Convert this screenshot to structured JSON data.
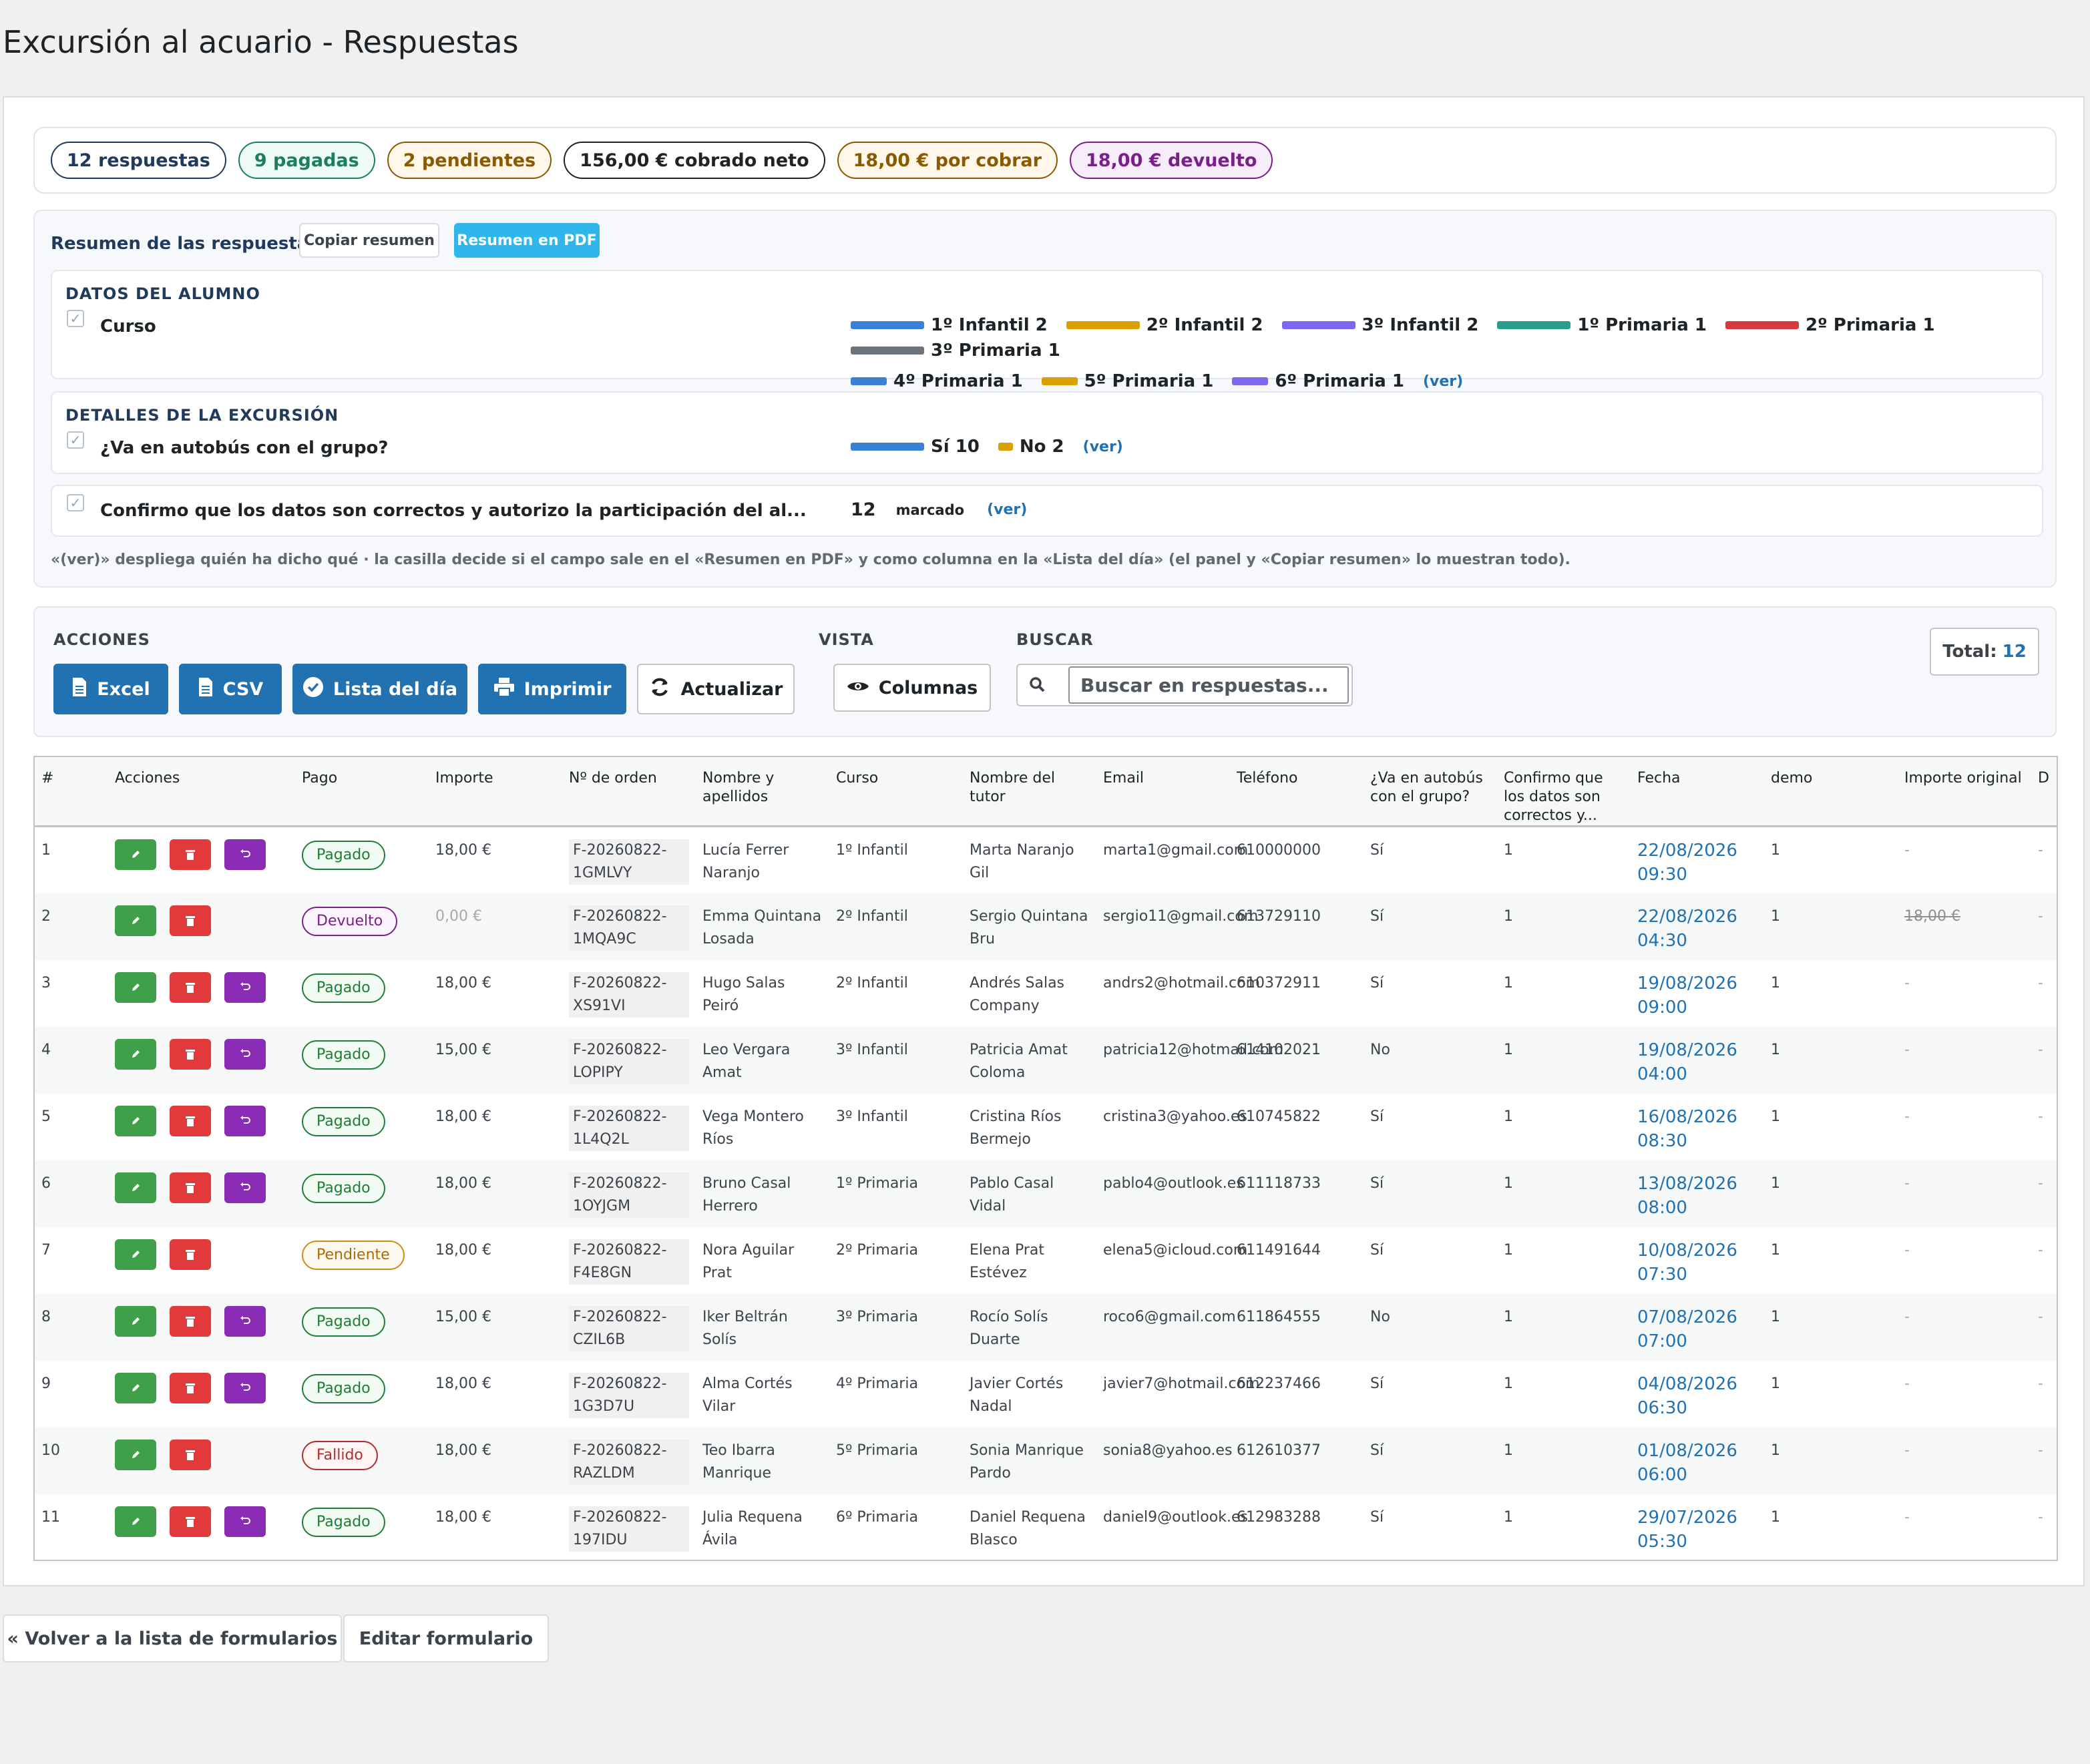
{
  "page": {
    "title": "Excursión al acuario - Respuestas"
  },
  "stats": {
    "items": [
      {
        "label": "12 respuestas",
        "color": "#1f3a5a",
        "bg": "#ffffff"
      },
      {
        "label": "9 pagadas",
        "color": "#1a7f5a",
        "bg": "#eefaf5"
      },
      {
        "label": "2 pendientes",
        "color": "#8a5a00",
        "bg": "#fff8ea"
      },
      {
        "label": "156,00 € cobrado neto",
        "color": "#1d2327",
        "bg": "#ffffff"
      },
      {
        "label": "18,00 € por cobrar",
        "color": "#8a5a00",
        "bg": "#fff8ea"
      },
      {
        "label": "18,00 € devuelto",
        "color": "#7a1f8a",
        "bg": "#f6ecfa"
      }
    ]
  },
  "summary": {
    "title": "Resumen de las respuestas",
    "copy_label": "Copiar resumen",
    "pdf_label": "Resumen en PDF",
    "sections": {
      "student": {
        "title": "DATOS DEL ALUMNO",
        "field": "Curso",
        "legend": [
          {
            "label": "1º Infantil 2",
            "color": "#3b7fd6"
          },
          {
            "label": "2º Infantil 2",
            "color": "#d9a100"
          },
          {
            "label": "3º Infantil 2",
            "color": "#7b68ee"
          },
          {
            "label": "1º Primaria 1",
            "color": "#2a9d8f"
          },
          {
            "label": "2º Primaria 1",
            "color": "#d63a3a"
          },
          {
            "label": "3º Primaria 1",
            "color": "#6b737d"
          },
          {
            "label": "4º Primaria 1",
            "color": "#3b7fd6"
          },
          {
            "label": "5º Primaria 1",
            "color": "#d9a100"
          },
          {
            "label": "6º Primaria 1",
            "color": "#7b68ee"
          }
        ],
        "ver": "(ver)"
      },
      "trip": {
        "title": "DETALLES DE LA EXCURSIÓN",
        "field": "¿Va en autobús con el grupo?",
        "legend": [
          {
            "label": "Sí 10",
            "color": "#3b7fd6"
          },
          {
            "label": "No 2",
            "color": "#d9a100"
          }
        ],
        "ver": "(ver)"
      },
      "confirm": {
        "field": "Confirmo que los datos son correctos y autorizo la participación del al...",
        "count": "12",
        "count_label": "marcado",
        "ver": "(ver)"
      }
    },
    "note": "«(ver)» despliega quién ha dicho qué · la casilla decide si el campo sale en el «Resumen en PDF» y como columna en la «Lista del día» (el panel y «Copiar resumen» lo muestran todo)."
  },
  "toolbar": {
    "acciones_label": "ACCIONES",
    "vista_label": "VISTA",
    "buscar_label": "BUSCAR",
    "excel": "Excel",
    "csv": "CSV",
    "lista": "Lista del día",
    "imprimir": "Imprimir",
    "actualizar": "Actualizar",
    "columnas": "Columnas",
    "search_placeholder": "Buscar en respuestas...",
    "total_label": "Total:",
    "total_value": "12"
  },
  "table": {
    "headers": [
      "#",
      "Acciones",
      "Pago",
      "Importe",
      "Nº de orden",
      "Nombre y apellidos",
      "Curso",
      "Nombre del tutor",
      "Email",
      "Teléfono",
      "¿Va en autobús con el grupo?",
      "Confirmo que los datos son correctos y...",
      "Fecha",
      "demo",
      "Importe original",
      "D"
    ],
    "rows": [
      {
        "n": "1",
        "undo": true,
        "pago": "Pagado",
        "importe": "18,00 €",
        "orden": "F-20260822-1GMLVY",
        "nombre": "Lucía Ferrer Naranjo",
        "curso": "1º Infantil",
        "tutor": "Marta Naranjo Gil",
        "email": "marta1@gmail.com",
        "tel": "610000000",
        "bus": "Sí",
        "conf": "1",
        "fecha": "22/08/2026 09:30",
        "demo": "1",
        "orig": "-",
        "d": "-"
      },
      {
        "n": "2",
        "undo": false,
        "pago": "Devuelto",
        "importe": "0,00 €",
        "orden": "F-20260822-1MQA9C",
        "nombre": "Emma Quintana Losada",
        "curso": "2º Infantil",
        "tutor": "Sergio Quintana Bru",
        "email": "sergio11@gmail.com",
        "tel": "613729110",
        "bus": "Sí",
        "conf": "1",
        "fecha": "22/08/2026 04:30",
        "demo": "1",
        "orig": "18,00 €",
        "d": "-"
      },
      {
        "n": "3",
        "undo": true,
        "pago": "Pagado",
        "importe": "18,00 €",
        "orden": "F-20260822-XS91VI",
        "nombre": "Hugo Salas Peiró",
        "curso": "2º Infantil",
        "tutor": "Andrés Salas Company",
        "email": "andrs2@hotmail.com",
        "tel": "610372911",
        "bus": "Sí",
        "conf": "1",
        "fecha": "19/08/2026 09:00",
        "demo": "1",
        "orig": "-",
        "d": "-"
      },
      {
        "n": "4",
        "undo": true,
        "pago": "Pagado",
        "importe": "15,00 €",
        "orden": "F-20260822-LOPIPY",
        "nombre": "Leo Vergara Amat",
        "curso": "3º Infantil",
        "tutor": "Patricia Amat Coloma",
        "email": "patricia12@hotmail.com",
        "tel": "614102021",
        "bus": "No",
        "conf": "1",
        "fecha": "19/08/2026 04:00",
        "demo": "1",
        "orig": "-",
        "d": "-"
      },
      {
        "n": "5",
        "undo": true,
        "pago": "Pagado",
        "importe": "18,00 €",
        "orden": "F-20260822-1L4Q2L",
        "nombre": "Vega Montero Ríos",
        "curso": "3º Infantil",
        "tutor": "Cristina Ríos Bermejo",
        "email": "cristina3@yahoo.es",
        "tel": "610745822",
        "bus": "Sí",
        "conf": "1",
        "fecha": "16/08/2026 08:30",
        "demo": "1",
        "orig": "-",
        "d": "-"
      },
      {
        "n": "6",
        "undo": true,
        "pago": "Pagado",
        "importe": "18,00 €",
        "orden": "F-20260822-1OYJGM",
        "nombre": "Bruno Casal Herrero",
        "curso": "1º Primaria",
        "tutor": "Pablo Casal Vidal",
        "email": "pablo4@outlook.es",
        "tel": "611118733",
        "bus": "Sí",
        "conf": "1",
        "fecha": "13/08/2026 08:00",
        "demo": "1",
        "orig": "-",
        "d": "-"
      },
      {
        "n": "7",
        "undo": false,
        "pago": "Pendiente",
        "importe": "18,00 €",
        "orden": "F-20260822-F4E8GN",
        "nombre": "Nora Aguilar Prat",
        "curso": "2º Primaria",
        "tutor": "Elena Prat Estévez",
        "email": "elena5@icloud.com",
        "tel": "611491644",
        "bus": "Sí",
        "conf": "1",
        "fecha": "10/08/2026 07:30",
        "demo": "1",
        "orig": "-",
        "d": "-"
      },
      {
        "n": "8",
        "undo": true,
        "pago": "Pagado",
        "importe": "15,00 €",
        "orden": "F-20260822-CZIL6B",
        "nombre": "Iker Beltrán Solís",
        "curso": "3º Primaria",
        "tutor": "Rocío Solís Duarte",
        "email": "roco6@gmail.com",
        "tel": "611864555",
        "bus": "No",
        "conf": "1",
        "fecha": "07/08/2026 07:00",
        "demo": "1",
        "orig": "-",
        "d": "-"
      },
      {
        "n": "9",
        "undo": true,
        "pago": "Pagado",
        "importe": "18,00 €",
        "orden": "F-20260822-1G3D7U",
        "nombre": "Alma Cortés Vilar",
        "curso": "4º Primaria",
        "tutor": "Javier Cortés Nadal",
        "email": "javier7@hotmail.com",
        "tel": "612237466",
        "bus": "Sí",
        "conf": "1",
        "fecha": "04/08/2026 06:30",
        "demo": "1",
        "orig": "-",
        "d": "-"
      },
      {
        "n": "10",
        "undo": false,
        "pago": "Fallido",
        "importe": "18,00 €",
        "orden": "F-20260822-RAZLDM",
        "nombre": "Teo Ibarra Manrique",
        "curso": "5º Primaria",
        "tutor": "Sonia Manrique Pardo",
        "email": "sonia8@yahoo.es",
        "tel": "612610377",
        "bus": "Sí",
        "conf": "1",
        "fecha": "01/08/2026 06:00",
        "demo": "1",
        "orig": "-",
        "d": "-"
      },
      {
        "n": "11",
        "undo": true,
        "pago": "Pagado",
        "importe": "18,00 €",
        "orden": "F-20260822-197IDU",
        "nombre": "Julia Requena Ávila",
        "curso": "6º Primaria",
        "tutor": "Daniel Requena Blasco",
        "email": "daniel9@outlook.es",
        "tel": "612983288",
        "bus": "Sí",
        "conf": "1",
        "fecha": "29/07/2026 05:30",
        "demo": "1",
        "orig": "-",
        "d": "-"
      }
    ],
    "pago_colors": {
      "Pagado": {
        "fg": "#1e7e34",
        "border": "#1e7e34",
        "bg": "#f1faf3"
      },
      "Devuelto": {
        "fg": "#7a1f8a",
        "border": "#7a1f8a",
        "bg": "#fbf3fd"
      },
      "Pendiente": {
        "fg": "#b06a00",
        "border": "#d08a1a",
        "bg": "#fffaf0"
      },
      "Fallido": {
        "fg": "#b32d2e",
        "border": "#b32d2e",
        "bg": "#fff5f5"
      }
    }
  },
  "footer": {
    "back_label": "« Volver a la lista de formularios",
    "edit_label": "Editar formulario"
  }
}
